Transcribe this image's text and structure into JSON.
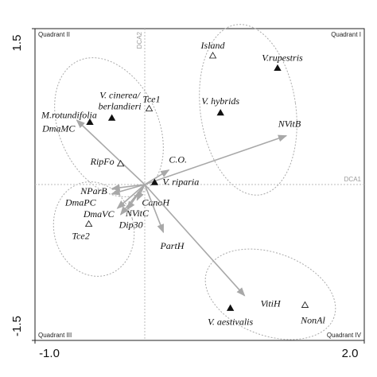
{
  "chart_data": {
    "type": "biplot",
    "xlim": [
      -1,
      2
    ],
    "ylim": [
      -1.5,
      1.5
    ],
    "xticks": [
      {
        "value": -1,
        "label": "-1.0"
      },
      {
        "value": 2,
        "label": "2.0"
      }
    ],
    "yticks": [
      1.5,
      -1.5
    ],
    "axis_labels": {
      "x": "DCA1",
      "y": "DCA2"
    },
    "quadrants": [
      "Quadrant I",
      "Quadrant II",
      "Quadrant III",
      "Quadrant IV"
    ],
    "points": [
      {
        "label": [
          "Island"
        ],
        "x": 0.62,
        "y": 1.24,
        "marker": "open"
      },
      {
        "label": [
          "V.rupestris"
        ],
        "x": 1.21,
        "y": 1.12,
        "marker": "filled"
      },
      {
        "label": [
          "V. hybrids"
        ],
        "x": 0.69,
        "y": 0.69,
        "marker": "filled"
      },
      {
        "label": [
          "Tce1"
        ],
        "x": 0.04,
        "y": 0.73,
        "marker": "open"
      },
      {
        "label": [
          "V. cinerea/",
          "berlandieri"
        ],
        "x": -0.3,
        "y": 0.64,
        "marker": "filled"
      },
      {
        "label": [
          "M.rotundifolia"
        ],
        "x": -0.5,
        "y": 0.6,
        "marker": "filled"
      },
      {
        "label": [
          "RipFo"
        ],
        "x": -0.22,
        "y": 0.2,
        "marker": "open"
      },
      {
        "label": [
          "V. riparia"
        ],
        "x": 0.09,
        "y": 0.02,
        "marker": "filled"
      },
      {
        "label": [
          "Tce2"
        ],
        "x": -0.51,
        "y": -0.38,
        "marker": "open"
      },
      {
        "label": [
          "V. aestivalis"
        ],
        "x": 0.78,
        "y": -1.19,
        "marker": "filled"
      },
      {
        "label": [
          "NonAl"
        ],
        "x": 1.46,
        "y": -1.16,
        "marker": "open"
      }
    ],
    "vectors": [
      {
        "label": "NVitB",
        "x": 1.29,
        "y": 0.47
      },
      {
        "label": "C.O.",
        "x": 0.22,
        "y": 0.14
      },
      {
        "label": "DmaMC",
        "x": -0.62,
        "y": 0.62
      },
      {
        "label": "NParB",
        "x": -0.3,
        "y": -0.04
      },
      {
        "label": "DmaPC",
        "x": -0.3,
        "y": -0.09
      },
      {
        "label": "DmaVC",
        "x": -0.25,
        "y": -0.23
      },
      {
        "label": "NVitC",
        "x": -0.16,
        "y": -0.24
      },
      {
        "label": "CanoH",
        "x": -0.07,
        "y": -0.15
      },
      {
        "label": "Dip30",
        "x": -0.22,
        "y": -0.29
      },
      {
        "label": "PartH",
        "x": 0.17,
        "y": -0.46
      },
      {
        "label": "VitiH",
        "x": 0.91,
        "y": -1.07
      }
    ],
    "marker_color": "#111111",
    "vector_color": "#a8a8a8"
  }
}
